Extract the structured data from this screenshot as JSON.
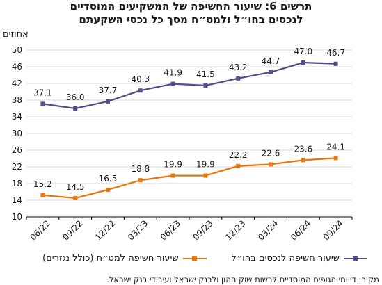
{
  "chart_data": {
    "type": "line",
    "title": "תרשים 6: שיעור החשיפה של המשקיעים המוסדיים",
    "subtitle": "לנכסים בחו״ל ולמט״ח מסך כל נכסי השקעתם",
    "ylabel": "אחוזים",
    "xlabel": "",
    "categories": [
      "06/22",
      "09/22",
      "12/22",
      "03/23",
      "06/23",
      "09/23",
      "12/23",
      "03/24",
      "06/24",
      "09/24"
    ],
    "y_ticks": [
      10,
      14,
      18,
      22,
      26,
      30,
      34,
      38,
      42,
      46,
      50
    ],
    "ylim": [
      10,
      50
    ],
    "grid": true,
    "legend_position": "bottom",
    "series": [
      {
        "name": "שיעור חשיפה לנכסים בחו״ל",
        "color": "#5b4a8b",
        "marker": "square",
        "values": [
          37.1,
          36.0,
          37.7,
          40.3,
          41.9,
          41.5,
          43.2,
          44.7,
          47.0,
          46.7
        ],
        "labels": [
          "37.1",
          "36.0",
          "37.7",
          "40.3",
          "41.9",
          "41.5",
          "43.2",
          "44.7",
          "47.0",
          "46.7"
        ]
      },
      {
        "name": "שיעור חשיפה למט״ח (כולל נגזרים)",
        "color": "#e8770e",
        "marker": "square",
        "values": [
          15.2,
          14.5,
          16.5,
          18.8,
          19.9,
          19.9,
          22.2,
          22.6,
          23.6,
          24.1
        ],
        "labels": [
          "15.2",
          "14.5",
          "16.5",
          "18.8",
          "19.9",
          "19.9",
          "22.2",
          "22.6",
          "23.6",
          "24.1"
        ]
      }
    ],
    "source": "מקור: דיווחי הגופים המוסדיים לרשות שוק ההון ולבנק ישראל ועיבודי בנק ישראל."
  }
}
